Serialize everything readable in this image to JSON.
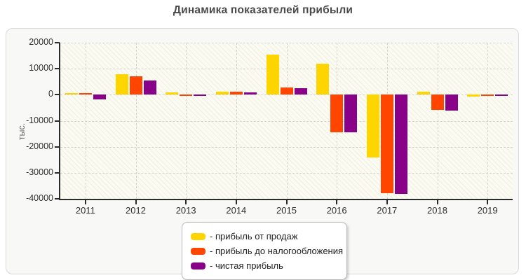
{
  "page": {
    "title": "Динамика показателей прибыли"
  },
  "chart_data": {
    "type": "bar",
    "title": "Динамика показателей прибыли",
    "xlabel": "",
    "ylabel": "тыс.",
    "categories": [
      "2011",
      "2012",
      "2013",
      "2014",
      "2015",
      "2016",
      "2017",
      "2018",
      "2019"
    ],
    "ylim": [
      -40000,
      20000
    ],
    "yticks": [
      20000,
      10000,
      0,
      -10000,
      -20000,
      -30000,
      -40000
    ],
    "grid": true,
    "grid_style": "dashed",
    "legend_position": "bottom-center",
    "plot_background": "#fbfbf2",
    "series": [
      {
        "name": "прибыль от продаж",
        "legend_label": "- прибыль от продаж",
        "color": "#ffd500",
        "values": [
          500,
          8000,
          1000,
          1300,
          15500,
          11800,
          -24000,
          1200,
          -800
        ]
      },
      {
        "name": "прибыль до налогообложения",
        "legend_label": "- прибыль до налогообложения",
        "color": "#ff4500",
        "values": [
          500,
          7000,
          -300,
          1200,
          2900,
          -14500,
          -37800,
          -5700,
          -300
        ]
      },
      {
        "name": "чистая прибыль",
        "legend_label": "- чистая прибыль",
        "color": "#8a0189",
        "values": [
          -1700,
          5600,
          -300,
          1000,
          2400,
          -14500,
          -38000,
          -6000,
          -300
        ]
      }
    ]
  }
}
